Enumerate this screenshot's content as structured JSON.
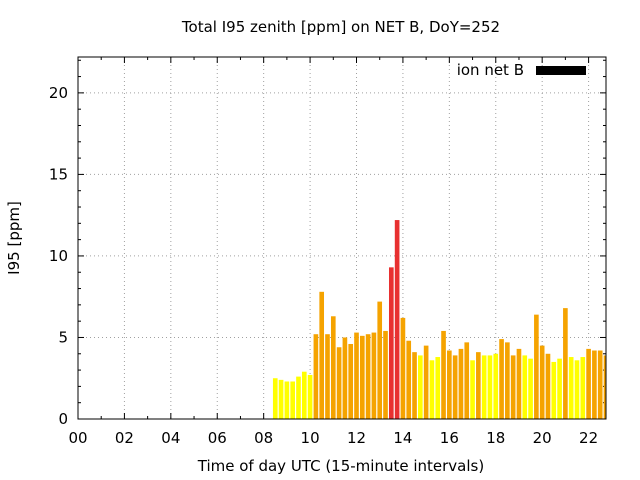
{
  "chart_data": {
    "type": "bar",
    "title": "Total I95 zenith [ppm] on NET B, DoY=252",
    "xlabel": "Time of day UTC (15-minute intervals)",
    "ylabel": "I95 [ppm]",
    "xlim": [
      0,
      22.75
    ],
    "ylim": [
      0,
      22.2
    ],
    "xticks": [
      "00",
      "02",
      "04",
      "06",
      "08",
      "10",
      "12",
      "14",
      "16",
      "18",
      "20",
      "22"
    ],
    "yticks": [
      "0",
      "5",
      "10",
      "15",
      "20"
    ],
    "grid": true,
    "legend": {
      "label": "ion net B",
      "position": "top-right",
      "color": "#000000"
    },
    "bar_width_hours": 0.2,
    "colors": {
      "low": "#ffff00",
      "medium": "#f5a300",
      "high": "#e83030"
    },
    "x": [
      8.5,
      8.75,
      9.0,
      9.25,
      9.5,
      9.75,
      10.0,
      10.25,
      10.5,
      10.75,
      11.0,
      11.25,
      11.5,
      11.75,
      12.0,
      12.25,
      12.5,
      12.75,
      13.0,
      13.25,
      13.5,
      13.75,
      14.0,
      14.25,
      14.5,
      14.75,
      15.0,
      15.25,
      15.5,
      15.75,
      16.0,
      16.25,
      16.5,
      16.75,
      17.0,
      17.25,
      17.5,
      17.75,
      18.0,
      18.25,
      18.5,
      18.75,
      19.0,
      19.25,
      19.5,
      19.75,
      20.0,
      20.25,
      20.5,
      20.75,
      21.0,
      21.25,
      21.5,
      21.75,
      22.0,
      22.25,
      22.5,
      22.75
    ],
    "values": [
      2.5,
      2.4,
      2.3,
      2.3,
      2.6,
      2.9,
      2.7,
      5.2,
      7.8,
      5.2,
      6.3,
      4.4,
      5.0,
      4.6,
      5.3,
      5.1,
      5.2,
      5.3,
      7.2,
      5.4,
      9.3,
      12.2,
      6.2,
      4.8,
      4.1,
      3.9,
      4.5,
      3.6,
      3.8,
      5.4,
      4.2,
      3.9,
      4.3,
      4.7,
      3.6,
      4.1,
      3.9,
      3.9,
      4.0,
      4.9,
      4.7,
      3.9,
      4.3,
      3.9,
      3.7,
      6.4,
      4.5,
      4.0,
      3.5,
      3.7,
      6.8,
      3.8,
      3.6,
      3.8,
      4.3,
      4.2,
      4.2,
      3.9
    ],
    "levels": [
      "low",
      "low",
      "low",
      "low",
      "low",
      "low",
      "low",
      "medium",
      "medium",
      "medium",
      "medium",
      "medium",
      "medium",
      "medium",
      "medium",
      "medium",
      "medium",
      "medium",
      "medium",
      "medium",
      "high",
      "high",
      "medium",
      "medium",
      "medium",
      "low",
      "medium",
      "low",
      "low",
      "medium",
      "medium",
      "medium",
      "medium",
      "medium",
      "low",
      "medium",
      "low",
      "low",
      "low",
      "medium",
      "medium",
      "medium",
      "medium",
      "low",
      "low",
      "medium",
      "medium",
      "medium",
      "low",
      "low",
      "medium",
      "low",
      "low",
      "low",
      "medium",
      "medium",
      "medium",
      "medium"
    ]
  }
}
